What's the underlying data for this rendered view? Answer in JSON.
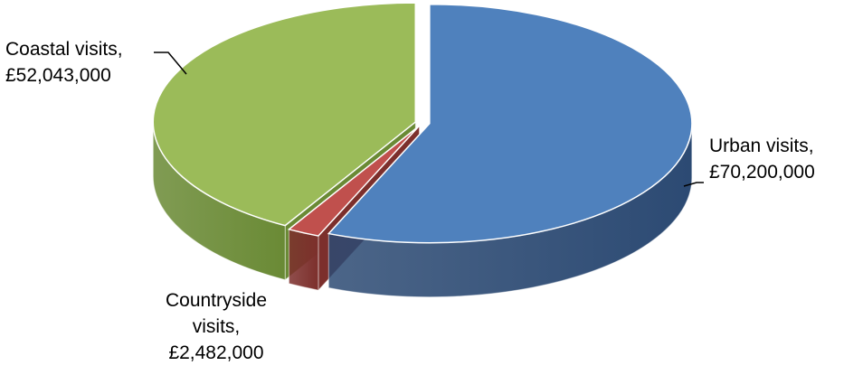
{
  "chart_data": {
    "type": "pie",
    "title": "",
    "style": "3d-exploded",
    "slices": [
      {
        "key": "urban",
        "name": "Urban visits",
        "value": 70200000,
        "label_lines": [
          "Urban visits,",
          "£70,200,000"
        ],
        "color_top": "#4f81bd",
        "color_side": "#2c4a73"
      },
      {
        "key": "countryside",
        "name": "Countryside visits",
        "value": 2482000,
        "label_lines": [
          "Countryside",
          "visits,",
          "£2,482,000"
        ],
        "color_top": "#c0504d",
        "color_side": "#7c2f2c"
      },
      {
        "key": "coastal",
        "name": "Coastal visits",
        "value": 52043000,
        "label_lines": [
          "Coastal visits,",
          "£52,043,000"
        ],
        "color_top": "#9bbb59",
        "color_side": "#6a8a35"
      }
    ]
  }
}
